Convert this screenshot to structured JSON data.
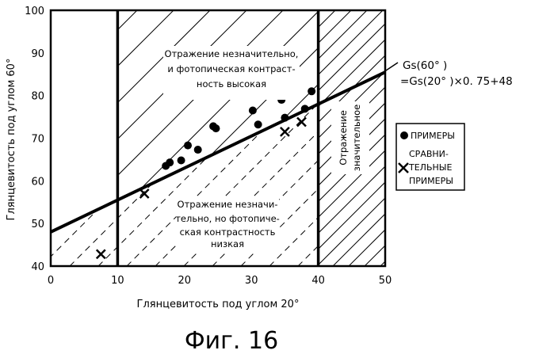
{
  "figure_caption": "Фиг. 16",
  "chart_data": {
    "type": "scatter",
    "xlabel": "Глянцевитость под углом 20°",
    "ylabel": "Глянцевитость под углом 60°",
    "xlim": [
      0,
      50
    ],
    "ylim": [
      40,
      100
    ],
    "x_ticks": [
      "0",
      "10",
      "20",
      "30",
      "40",
      "50"
    ],
    "y_ticks": [
      "40",
      "50",
      "60",
      "70",
      "80",
      "90",
      "100"
    ],
    "grid": false,
    "legend_position": "right",
    "line": {
      "label_line1": "Gs(60° )",
      "label_line2": "=Gs(20° )×0. 75+48",
      "slope": 0.75,
      "intercept": 48
    },
    "regions": {
      "upper_text": [
        "Отражение незначительно,",
        "и фотопическая контраст-",
        "ность высокая"
      ],
      "lower_text": [
        "Отражение незначи-",
        "тельно, но фотопиче-",
        "ская контрастность",
        "низкая"
      ],
      "right_text": [
        "Отражение",
        "значительное"
      ]
    },
    "series": [
      {
        "name": "ПРИМЕРЫ",
        "marker": "circle",
        "points": [
          [
            17.2,
            63.5
          ],
          [
            17.8,
            64.3
          ],
          [
            19.5,
            64.8
          ],
          [
            20.5,
            68.3
          ],
          [
            22.0,
            67.3
          ],
          [
            24.3,
            72.8
          ],
          [
            24.7,
            72.3
          ],
          [
            30.2,
            76.5
          ],
          [
            31.0,
            73.2
          ],
          [
            34.5,
            79.0
          ],
          [
            35.0,
            74.8
          ],
          [
            38.0,
            76.9
          ],
          [
            39.0,
            81.0
          ]
        ]
      },
      {
        "name": "СРАВНИ-ТЕЛЬНЫЕ ПРИМЕРЫ",
        "name_lines": [
          "СРАВНИ-",
          "ТЕЛЬНЫЕ",
          "ПРИМЕРЫ"
        ],
        "marker": "x",
        "points": [
          [
            7.5,
            42.8
          ],
          [
            14.0,
            57.0
          ],
          [
            35.0,
            71.5
          ],
          [
            37.5,
            73.8
          ]
        ]
      }
    ]
  }
}
